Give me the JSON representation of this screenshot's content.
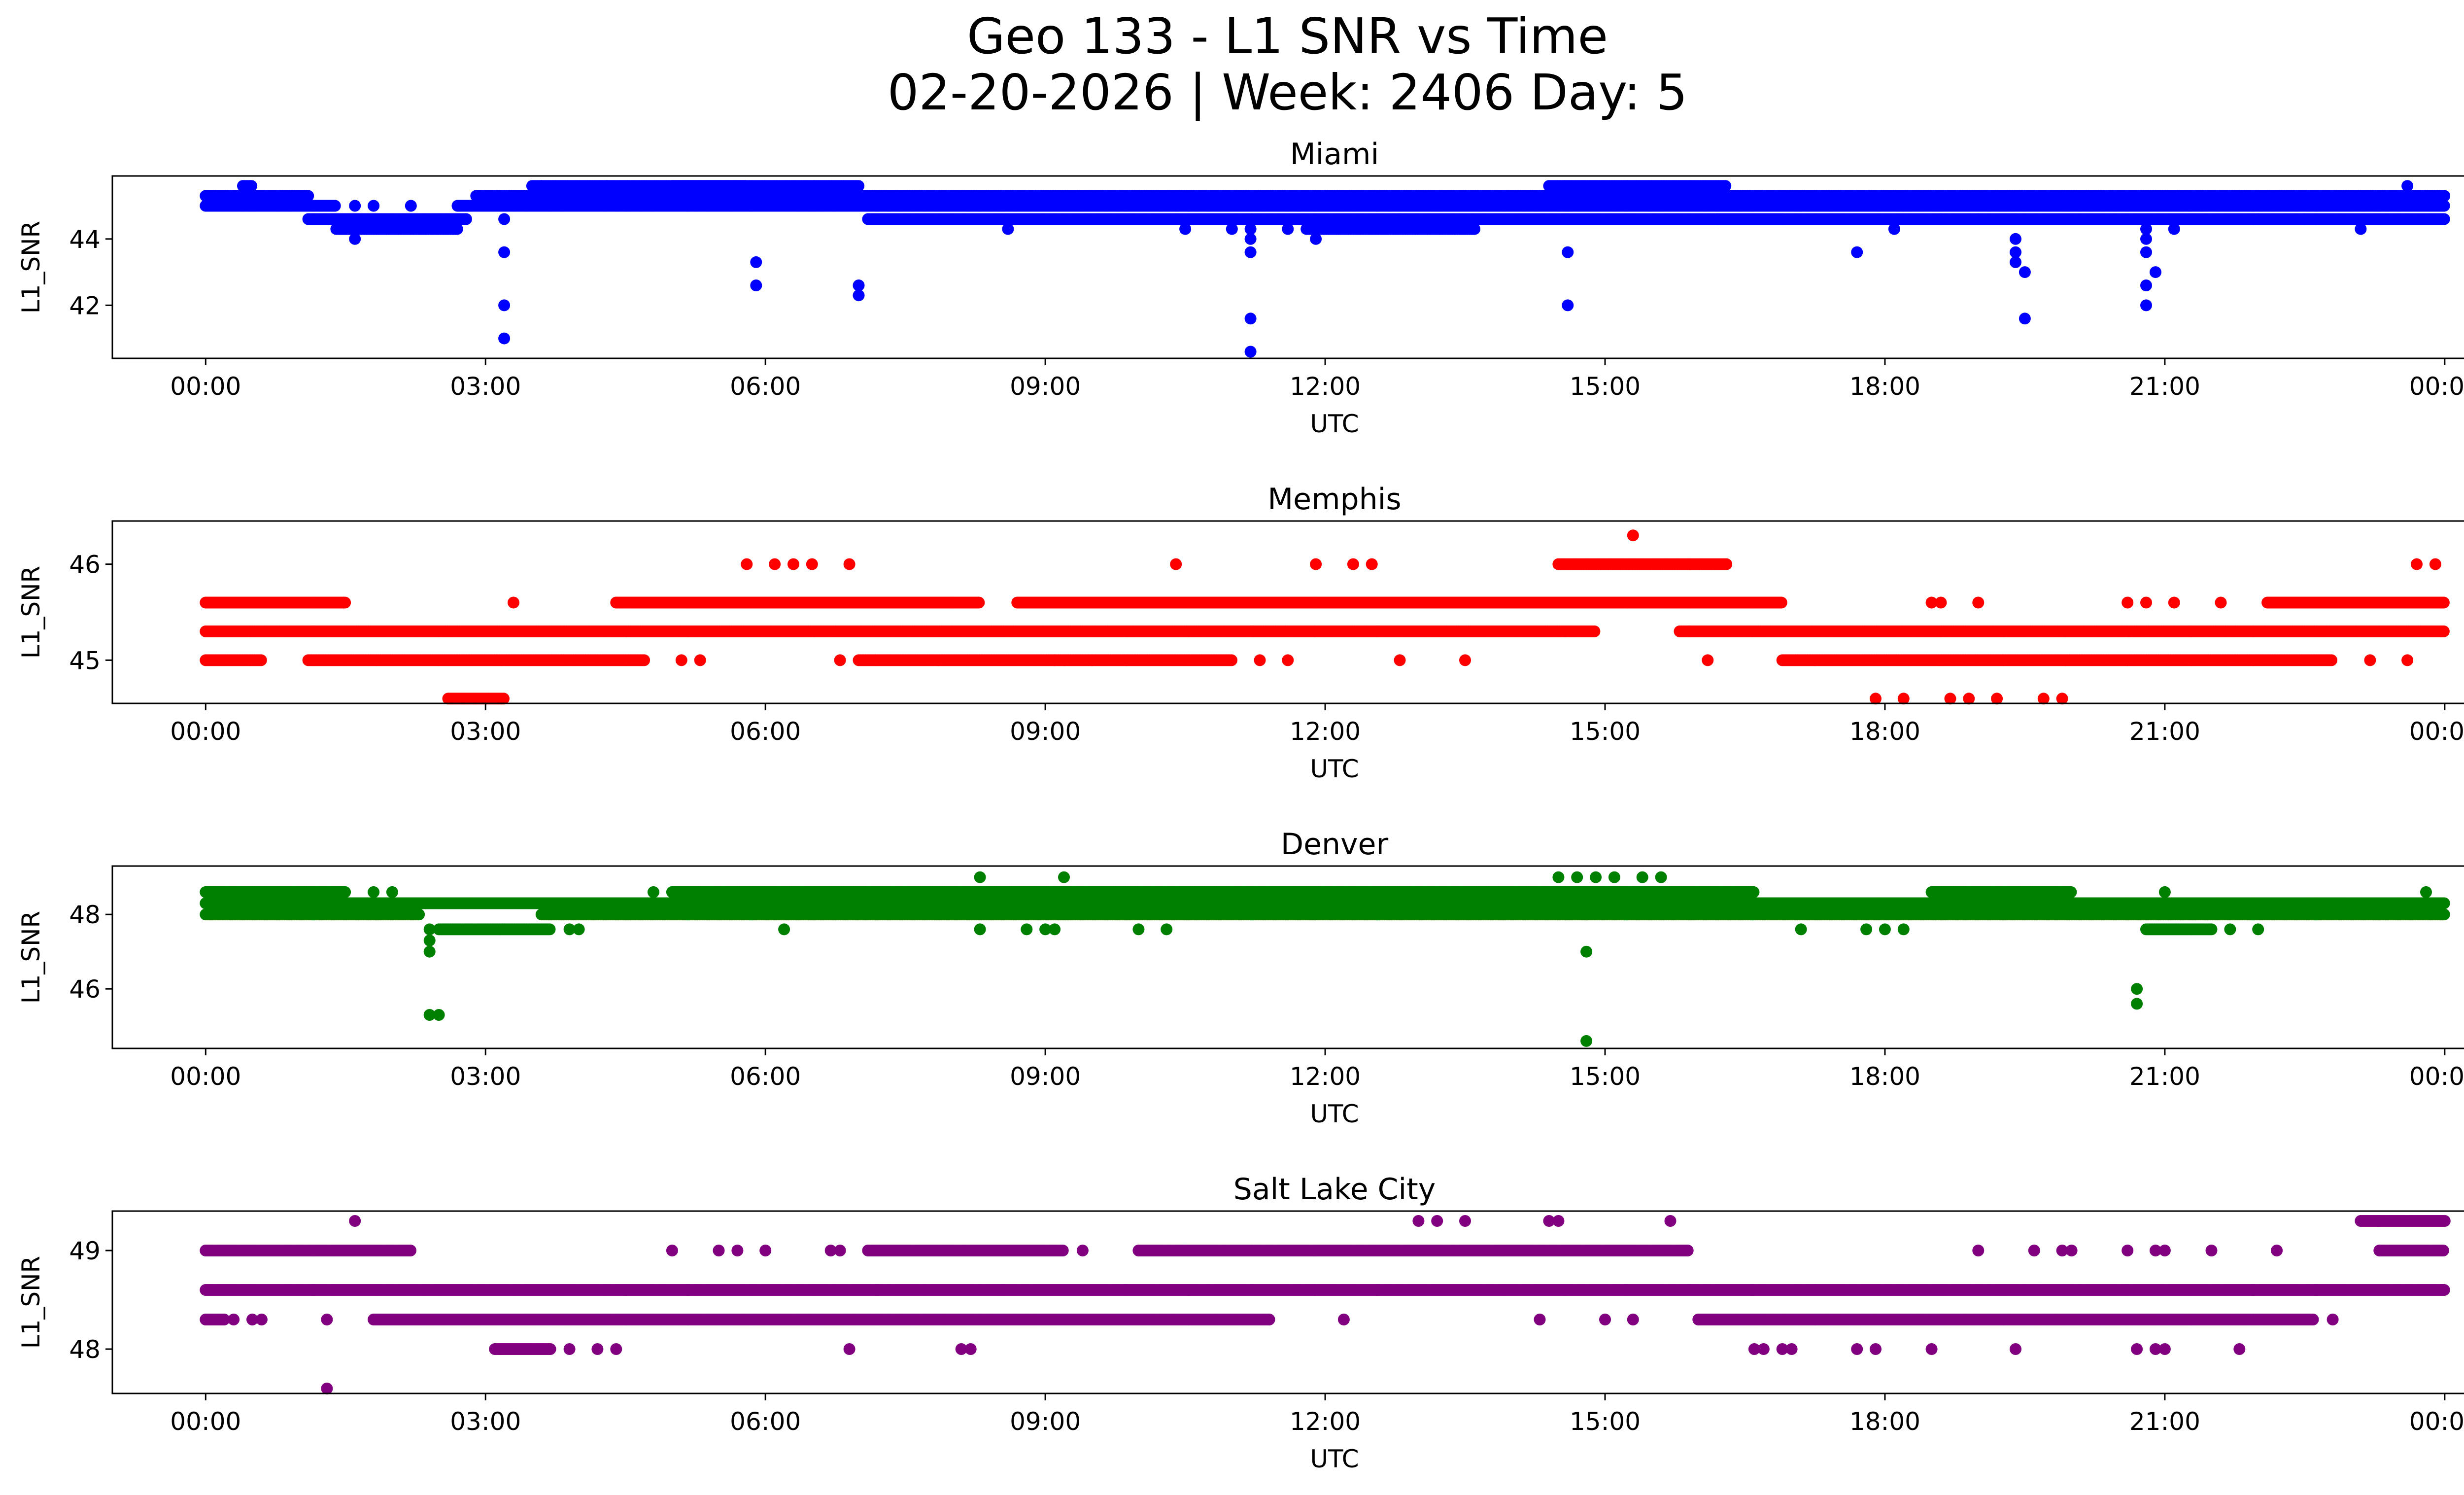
{
  "figure": {
    "title_line1": "Geo 133 - L1 SNR vs Time",
    "title_line2": "02-20-2026 | Week: 2406 Day: 5"
  },
  "chart_data": [
    {
      "type": "scatter",
      "title": "Miami",
      "xlabel": "UTC",
      "ylabel": "L1_SNR",
      "color": "#0000ff",
      "xlim": [
        -1.0,
        25.2
      ],
      "ylim": [
        40.4,
        45.9
      ],
      "xticks": [
        0,
        3,
        6,
        9,
        12,
        15,
        18,
        21,
        24
      ],
      "xtick_labels": [
        "00:00",
        "03:00",
        "06:00",
        "09:00",
        "12:00",
        "15:00",
        "18:00",
        "21:00",
        "00:00"
      ],
      "yticks": [
        42,
        44
      ],
      "ytick_labels": [
        "42",
        "44"
      ],
      "bands": [
        {
          "value": 45.3,
          "segments": [
            [
              0.0,
              1.1
            ],
            [
              2.9,
              24.0
            ]
          ]
        },
        {
          "value": 45.0,
          "segments": [
            [
              0.0,
              1.4
            ],
            [
              2.7,
              24.0
            ]
          ]
        },
        {
          "value": 44.6,
          "segments": [
            [
              1.1,
              2.8
            ],
            [
              7.1,
              16.9
            ],
            [
              16.2,
              24.0
            ]
          ]
        },
        {
          "value": 44.3,
          "segments": [
            [
              1.4,
              2.7
            ],
            [
              11.8,
              13.6
            ]
          ]
        },
        {
          "value": 45.6,
          "segments": [
            [
              0.4,
              0.5
            ],
            [
              3.5,
              5.8
            ],
            [
              5.0,
              7.0
            ],
            [
              14.4,
              16.3
            ]
          ]
        }
      ],
      "points": [
        [
          3.2,
          45.3
        ],
        [
          3.2,
          44.6
        ],
        [
          3.2,
          43.6
        ],
        [
          3.2,
          42.0
        ],
        [
          3.2,
          41.0
        ],
        [
          5.9,
          43.3
        ],
        [
          5.9,
          42.6
        ],
        [
          7.0,
          42.6
        ],
        [
          7.0,
          42.3
        ],
        [
          11.2,
          44.3
        ],
        [
          11.2,
          44.0
        ],
        [
          11.2,
          43.6
        ],
        [
          11.2,
          41.6
        ],
        [
          11.2,
          40.6
        ],
        [
          14.6,
          45.0
        ],
        [
          14.6,
          44.6
        ],
        [
          14.6,
          43.6
        ],
        [
          14.6,
          42.0
        ],
        [
          19.4,
          44.6
        ],
        [
          19.4,
          44.0
        ],
        [
          19.4,
          43.6
        ],
        [
          19.4,
          43.3
        ],
        [
          19.5,
          43.0
        ],
        [
          19.5,
          41.6
        ],
        [
          20.8,
          44.3
        ],
        [
          20.8,
          44.0
        ],
        [
          20.8,
          43.6
        ],
        [
          20.8,
          42.6
        ],
        [
          20.8,
          42.0
        ],
        [
          20.9,
          43.0
        ],
        [
          1.6,
          44.0
        ],
        [
          8.6,
          44.3
        ],
        [
          10.5,
          44.3
        ],
        [
          11.0,
          44.3
        ],
        [
          11.6,
          44.3
        ],
        [
          11.9,
          44.0
        ],
        [
          12.8,
          44.6
        ],
        [
          17.7,
          43.6
        ],
        [
          16.9,
          44.6
        ],
        [
          18.1,
          44.3
        ],
        [
          19.0,
          44.6
        ],
        [
          21.1,
          44.3
        ],
        [
          22.0,
          44.6
        ],
        [
          22.5,
          44.6
        ],
        [
          23.1,
          44.3
        ],
        [
          1.6,
          45.0
        ],
        [
          1.8,
          45.0
        ],
        [
          2.2,
          45.0
        ],
        [
          3.6,
          45.6
        ],
        [
          4.3,
          45.6
        ],
        [
          6.5,
          45.3
        ],
        [
          8.9,
          45.3
        ],
        [
          10.4,
          45.0
        ],
        [
          14.3,
          45.3
        ],
        [
          17.1,
          45.0
        ],
        [
          18.2,
          45.0
        ],
        [
          18.6,
          44.6
        ],
        [
          19.1,
          45.3
        ],
        [
          19.5,
          45.3
        ],
        [
          20.4,
          45.3
        ],
        [
          21.4,
          45.0
        ],
        [
          23.6,
          45.6
        ]
      ]
    },
    {
      "type": "scatter",
      "title": "Memphis",
      "xlabel": "UTC",
      "ylabel": "L1_SNR",
      "color": "#ff0000",
      "xlim": [
        -1.0,
        25.2
      ],
      "ylim": [
        44.55,
        46.45
      ],
      "xticks": [
        0,
        3,
        6,
        9,
        12,
        15,
        18,
        21,
        24
      ],
      "xtick_labels": [
        "00:00",
        "03:00",
        "06:00",
        "09:00",
        "12:00",
        "15:00",
        "18:00",
        "21:00",
        "00:00"
      ],
      "yticks": [
        45,
        46
      ],
      "ytick_labels": [
        "45",
        "46"
      ],
      "bands": [
        {
          "value": 45.3,
          "segments": [
            [
              0.0,
              14.9
            ],
            [
              15.8,
              24.0
            ]
          ]
        },
        {
          "value": 45.6,
          "segments": [
            [
              0.0,
              1.5
            ],
            [
              4.4,
              8.3
            ],
            [
              8.7,
              16.9
            ],
            [
              22.1,
              24.0
            ]
          ]
        },
        {
          "value": 45.0,
          "segments": [
            [
              0.0,
              0.6
            ],
            [
              1.1,
              4.7
            ],
            [
              7.0,
              11.0
            ],
            [
              16.9,
              22.8
            ]
          ]
        },
        {
          "value": 44.6,
          "segments": [
            [
              2.6,
              3.2
            ]
          ]
        },
        {
          "value": 46.0,
          "segments": [
            [
              14.5,
              16.3
            ]
          ]
        }
      ],
      "points": [
        [
          5.8,
          46.0
        ],
        [
          6.1,
          46.0
        ],
        [
          6.3,
          46.0
        ],
        [
          6.5,
          46.0
        ],
        [
          6.9,
          46.0
        ],
        [
          10.4,
          46.0
        ],
        [
          11.9,
          46.0
        ],
        [
          12.3,
          46.0
        ],
        [
          12.5,
          46.0
        ],
        [
          15.3,
          46.3
        ],
        [
          23.7,
          46.0
        ],
        [
          23.9,
          46.0
        ],
        [
          3.3,
          45.6
        ],
        [
          8.0,
          45.6
        ],
        [
          18.5,
          45.6
        ],
        [
          18.6,
          45.6
        ],
        [
          19.0,
          45.6
        ],
        [
          20.6,
          45.6
        ],
        [
          20.8,
          45.6
        ],
        [
          21.1,
          45.6
        ],
        [
          21.6,
          45.6
        ],
        [
          5.1,
          45.0
        ],
        [
          5.3,
          45.0
        ],
        [
          6.8,
          45.0
        ],
        [
          11.3,
          45.0
        ],
        [
          11.6,
          45.0
        ],
        [
          12.8,
          45.0
        ],
        [
          13.5,
          45.0
        ],
        [
          16.1,
          45.0
        ],
        [
          23.2,
          45.0
        ],
        [
          23.6,
          45.0
        ],
        [
          9.1,
          45.0
        ],
        [
          9.5,
          45.0
        ],
        [
          15.9,
          45.3
        ],
        [
          17.9,
          44.6
        ],
        [
          18.2,
          44.6
        ],
        [
          18.7,
          44.6
        ],
        [
          18.9,
          44.6
        ],
        [
          19.2,
          44.6
        ],
        [
          19.7,
          44.6
        ],
        [
          19.9,
          44.6
        ]
      ]
    },
    {
      "type": "scatter",
      "title": "Denver",
      "xlabel": "UTC",
      "ylabel": "L1_SNR",
      "color": "#008000",
      "xlim": [
        -1.0,
        25.2
      ],
      "ylim": [
        44.4,
        49.3
      ],
      "xticks": [
        0,
        3,
        6,
        9,
        12,
        15,
        18,
        21,
        24
      ],
      "xtick_labels": [
        "00:00",
        "03:00",
        "06:00",
        "09:00",
        "12:00",
        "15:00",
        "18:00",
        "21:00",
        "00:00"
      ],
      "yticks": [
        46,
        48
      ],
      "ytick_labels": [
        "46",
        "48"
      ],
      "bands": [
        {
          "value": 48.0,
          "segments": [
            [
              0.0,
              2.3
            ],
            [
              3.6,
              24.0
            ]
          ]
        },
        {
          "value": 48.3,
          "segments": [
            [
              0.0,
              24.0
            ]
          ]
        },
        {
          "value": 48.6,
          "segments": [
            [
              0.0,
              1.5
            ],
            [
              5.0,
              16.6
            ],
            [
              18.5,
              20.0
            ]
          ]
        },
        {
          "value": 47.6,
          "segments": [
            [
              2.5,
              3.7
            ],
            [
              20.8,
              21.5
            ]
          ]
        }
      ],
      "points": [
        [
          2.4,
          47.6
        ],
        [
          2.4,
          47.3
        ],
        [
          2.4,
          47.0
        ],
        [
          2.4,
          45.3
        ],
        [
          2.5,
          45.3
        ],
        [
          14.8,
          48.0
        ],
        [
          14.8,
          47.0
        ],
        [
          14.8,
          44.6
        ],
        [
          14.5,
          49.0
        ],
        [
          14.7,
          49.0
        ],
        [
          14.9,
          49.0
        ],
        [
          15.1,
          49.0
        ],
        [
          15.4,
          49.0
        ],
        [
          15.6,
          49.0
        ],
        [
          8.3,
          49.0
        ],
        [
          9.2,
          49.0
        ],
        [
          20.7,
          46.0
        ],
        [
          20.7,
          45.6
        ],
        [
          3.9,
          47.6
        ],
        [
          4.0,
          47.6
        ],
        [
          6.2,
          47.6
        ],
        [
          8.3,
          47.6
        ],
        [
          8.8,
          47.6
        ],
        [
          9.0,
          47.6
        ],
        [
          9.1,
          47.6
        ],
        [
          10.0,
          47.6
        ],
        [
          10.3,
          47.6
        ],
        [
          17.1,
          47.6
        ],
        [
          17.8,
          47.6
        ],
        [
          18.0,
          47.6
        ],
        [
          18.2,
          47.6
        ],
        [
          21.5,
          47.6
        ],
        [
          21.7,
          47.6
        ],
        [
          22.0,
          47.6
        ],
        [
          1.8,
          48.6
        ],
        [
          2.0,
          48.6
        ],
        [
          4.8,
          48.6
        ],
        [
          21.0,
          48.6
        ],
        [
          23.8,
          48.6
        ]
      ]
    },
    {
      "type": "scatter",
      "title": "Salt Lake City",
      "xlabel": "UTC",
      "ylabel": "L1_SNR",
      "color": "#800080",
      "xlim": [
        -1.0,
        25.2
      ],
      "ylim": [
        47.55,
        49.4
      ],
      "xticks": [
        0,
        3,
        6,
        9,
        12,
        15,
        18,
        21,
        24
      ],
      "xtick_labels": [
        "00:00",
        "03:00",
        "06:00",
        "09:00",
        "12:00",
        "15:00",
        "18:00",
        "21:00",
        "00:00"
      ],
      "yticks": [
        48,
        49
      ],
      "ytick_labels": [
        "48",
        "49"
      ],
      "bands": [
        {
          "value": 48.6,
          "segments": [
            [
              0.0,
              24.0
            ]
          ]
        },
        {
          "value": 48.3,
          "segments": [
            [
              0.0,
              0.2
            ],
            [
              1.8,
              11.4
            ],
            [
              16.0,
              22.6
            ]
          ]
        },
        {
          "value": 49.0,
          "segments": [
            [
              0.0,
              2.2
            ],
            [
              7.1,
              9.2
            ],
            [
              10.0,
              15.9
            ],
            [
              23.3,
              24.0
            ]
          ]
        },
        {
          "value": 48.0,
          "segments": [
            [
              3.1,
              3.7
            ]
          ]
        },
        {
          "value": 49.3,
          "segments": [
            [
              23.1,
              24.0
            ]
          ]
        }
      ],
      "points": [
        [
          0.3,
          48.3
        ],
        [
          0.5,
          48.3
        ],
        [
          0.6,
          48.3
        ],
        [
          1.3,
          48.3
        ],
        [
          12.2,
          48.3
        ],
        [
          14.3,
          48.3
        ],
        [
          15.0,
          48.3
        ],
        [
          15.3,
          48.3
        ],
        [
          1.6,
          49.3
        ],
        [
          1.3,
          47.6
        ],
        [
          13.0,
          49.3
        ],
        [
          13.2,
          49.3
        ],
        [
          13.5,
          49.3
        ],
        [
          14.4,
          49.3
        ],
        [
          14.5,
          49.3
        ],
        [
          15.7,
          49.3
        ],
        [
          5.0,
          49.0
        ],
        [
          5.5,
          49.0
        ],
        [
          5.7,
          49.0
        ],
        [
          6.0,
          49.0
        ],
        [
          6.7,
          49.0
        ],
        [
          6.8,
          49.0
        ],
        [
          9.4,
          49.0
        ],
        [
          19.0,
          49.0
        ],
        [
          19.6,
          49.0
        ],
        [
          19.9,
          49.0
        ],
        [
          20.0,
          49.0
        ],
        [
          20.6,
          49.0
        ],
        [
          20.9,
          49.0
        ],
        [
          21.0,
          49.0
        ],
        [
          21.5,
          49.0
        ],
        [
          22.2,
          49.0
        ],
        [
          3.9,
          48.0
        ],
        [
          4.2,
          48.0
        ],
        [
          4.4,
          48.0
        ],
        [
          6.9,
          48.0
        ],
        [
          8.1,
          48.0
        ],
        [
          8.2,
          48.0
        ],
        [
          16.6,
          48.0
        ],
        [
          16.7,
          48.0
        ],
        [
          16.9,
          48.0
        ],
        [
          17.0,
          48.0
        ],
        [
          17.7,
          48.0
        ],
        [
          17.9,
          48.0
        ],
        [
          18.5,
          48.0
        ],
        [
          19.4,
          48.0
        ],
        [
          20.7,
          48.0
        ],
        [
          20.9,
          48.0
        ],
        [
          21.0,
          48.0
        ],
        [
          21.8,
          48.0
        ],
        [
          11.4,
          48.3
        ],
        [
          22.8,
          48.3
        ]
      ]
    }
  ]
}
